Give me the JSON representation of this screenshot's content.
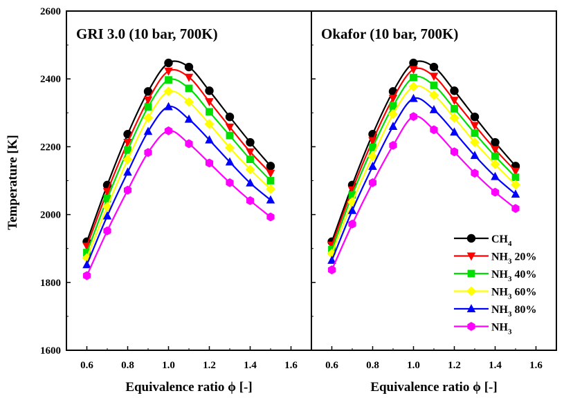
{
  "chart_data": {
    "type": "line",
    "ylabel": "Temperature [K]",
    "ylim": [
      1600,
      2600
    ],
    "yticks": [
      1600,
      1800,
      2000,
      2200,
      2400,
      2600
    ],
    "xticks": [
      0.6,
      0.8,
      1.0,
      1.2,
      1.4,
      1.6
    ],
    "xlim": [
      0.5,
      1.7
    ],
    "legend_placement": "lower-right of right panel",
    "colors": {
      "CH4": "#000000",
      "NH3 20%": "#ff0000",
      "NH3 40%": "#00e000",
      "NH3 60%": "#ffff00",
      "NH3 80%": "#0000ff",
      "NH3": "#ff00ff"
    },
    "legend": [
      {
        "label": "CH",
        "sub": "4",
        "suffix": "",
        "marker": "circle"
      },
      {
        "label": "NH",
        "sub": "3",
        "suffix": " 20%",
        "marker": "triangle-down"
      },
      {
        "label": "NH",
        "sub": "3",
        "suffix": " 40%",
        "marker": "square"
      },
      {
        "label": "NH",
        "sub": "3",
        "suffix": " 60%",
        "marker": "diamond"
      },
      {
        "label": "NH",
        "sub": "3",
        "suffix": " 80%",
        "marker": "triangle-up"
      },
      {
        "label": "NH",
        "sub": "3",
        "suffix": "",
        "marker": "hexagon"
      }
    ],
    "panels": [
      {
        "title": "GRI 3.0 (10 bar, 700K)",
        "xlabel": "Equivalence ratio ϕ [-]",
        "x": [
          0.6,
          0.7,
          0.8,
          0.9,
          1.0,
          1.1,
          1.2,
          1.3,
          1.4,
          1.5
        ],
        "series": [
          {
            "name": "CH4",
            "values": [
              1920,
              2087,
              2237,
              2363,
              2447,
              2435,
              2365,
              2288,
              2213,
              2143
            ]
          },
          {
            "name": "NH3 20%",
            "values": [
              1907,
              2068,
              2213,
              2338,
              2423,
              2405,
              2333,
              2258,
              2185,
              2122
            ]
          },
          {
            "name": "NH3 40%",
            "values": [
              1888,
              2047,
              2190,
              2317,
              2397,
              2372,
              2303,
              2233,
              2163,
              2100
            ]
          },
          {
            "name": "NH3 60%",
            "values": [
              1872,
              2023,
              2162,
              2285,
              2363,
              2332,
              2267,
              2197,
              2133,
              2075
            ]
          },
          {
            "name": "NH3 80%",
            "values": [
              1852,
              1996,
              2125,
              2245,
              2318,
              2281,
              2220,
              2155,
              2093,
              2043
            ]
          },
          {
            "name": "NH3",
            "values": [
              1820,
              1952,
              2072,
              2183,
              2247,
              2209,
              2152,
              2094,
              2041,
              1993
            ]
          }
        ]
      },
      {
        "title": "Okafor (10 bar, 700K)",
        "xlabel": "Equivalence ratio ϕ [-]",
        "x": [
          0.6,
          0.7,
          0.8,
          0.9,
          1.0,
          1.1,
          1.2,
          1.3,
          1.4,
          1.5
        ],
        "series": [
          {
            "name": "CH4",
            "values": [
              1920,
              2087,
              2237,
              2363,
              2447,
              2435,
              2365,
              2288,
              2213,
              2143
            ]
          },
          {
            "name": "NH3 20%",
            "values": [
              1910,
              2073,
              2218,
              2343,
              2428,
              2408,
              2337,
              2263,
              2192,
              2128
            ]
          },
          {
            "name": "NH3 40%",
            "values": [
              1897,
              2058,
              2198,
              2320,
              2404,
              2381,
              2312,
              2240,
              2172,
              2110
            ]
          },
          {
            "name": "NH3 60%",
            "values": [
              1885,
              2037,
              2172,
              2296,
              2377,
              2352,
              2285,
              2213,
              2148,
              2088
            ]
          },
          {
            "name": "NH3 80%",
            "values": [
              1865,
              2012,
              2142,
              2260,
              2342,
              2309,
              2243,
              2174,
              2112,
              2060
            ]
          },
          {
            "name": "NH3",
            "values": [
              1837,
              1972,
              2094,
              2204,
              2289,
              2250,
              2185,
              2122,
              2066,
              2018
            ]
          }
        ]
      }
    ]
  }
}
